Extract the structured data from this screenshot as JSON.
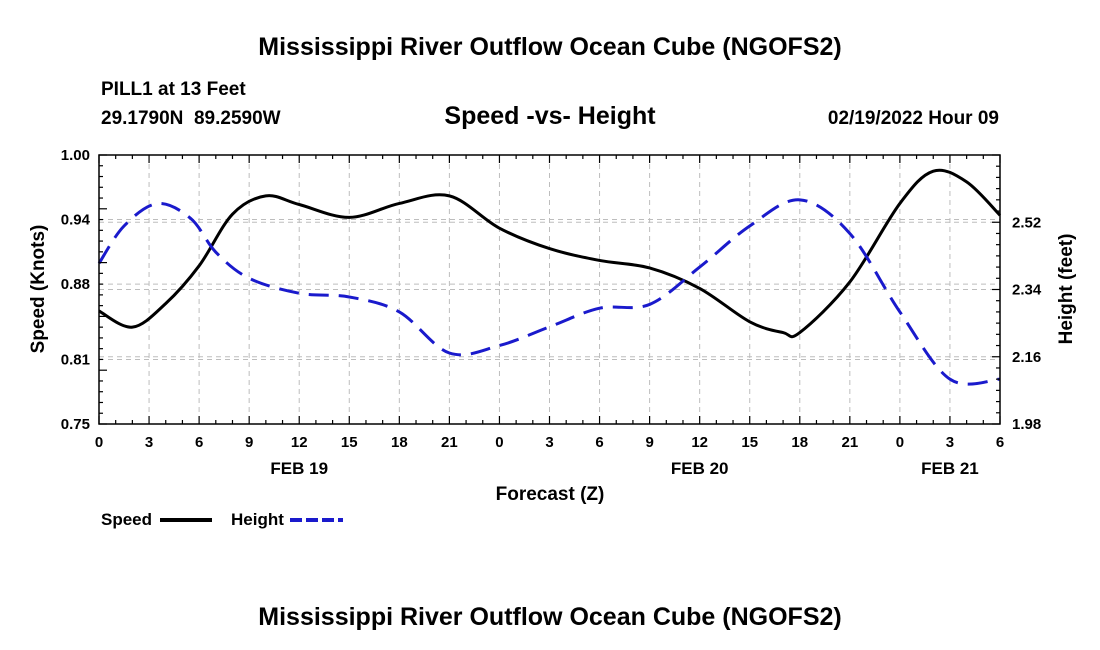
{
  "chart_data": {
    "type": "line",
    "title": "Mississippi River Outflow Ocean Cube (NGOFS2)",
    "footer_title": "Mississippi River Outflow Ocean Cube (NGOFS2)",
    "station": "PILL1 at 13 Feet",
    "coords": "29.1790N  89.2590W",
    "subtitle": "Speed -vs- Height",
    "datetime": "02/19/2022 Hour 09",
    "xlabel": "Forecast (Z)",
    "ylabel_left": "Speed (Knots)",
    "ylabel_right": "Height (feet)",
    "x_unit": "hours from FEB 19 00Z",
    "xlim": [
      0,
      54
    ],
    "x_ticks": [
      0,
      3,
      6,
      9,
      12,
      15,
      18,
      21,
      24,
      27,
      30,
      33,
      36,
      39,
      42,
      45,
      48,
      51,
      54
    ],
    "x_tick_labels": [
      "0",
      "3",
      "6",
      "9",
      "12",
      "15",
      "18",
      "21",
      "0",
      "3",
      "6",
      "9",
      "12",
      "15",
      "18",
      "21",
      "0",
      "3",
      "6"
    ],
    "date_labels": [
      {
        "text": "FEB 19",
        "x": 12
      },
      {
        "text": "FEB 20",
        "x": 36
      },
      {
        "text": "FEB 21",
        "x": 51
      }
    ],
    "ylim_left": [
      0.75,
      1.0
    ],
    "y_ticks_left": [
      0.75,
      0.81,
      0.88,
      0.94,
      1.0
    ],
    "y_tick_labels_left": [
      "0.75",
      "0.81",
      "0.88",
      "0.94",
      "1.00"
    ],
    "ylim_right": [
      1.98,
      2.7
    ],
    "y_ticks_right": [
      1.98,
      2.16,
      2.34,
      2.52
    ],
    "y_tick_labels_right": [
      "1.98",
      "2.16",
      "2.34",
      "2.52"
    ],
    "grid": true,
    "series": [
      {
        "name": "Speed",
        "axis": "left",
        "color": "#000000",
        "dash": "solid",
        "x": [
          0,
          2,
          4,
          6,
          8,
          10,
          12,
          15,
          18,
          21,
          24,
          27,
          30,
          33,
          36,
          39,
          41,
          42,
          45,
          48,
          50,
          52,
          54
        ],
        "values": [
          0.855,
          0.84,
          0.862,
          0.897,
          0.945,
          0.962,
          0.954,
          0.942,
          0.955,
          0.962,
          0.932,
          0.913,
          0.902,
          0.895,
          0.876,
          0.845,
          0.835,
          0.835,
          0.882,
          0.955,
          0.985,
          0.975,
          0.944
        ]
      },
      {
        "name": "Height",
        "axis": "right",
        "color": "#1a1acc",
        "dash": "dashed",
        "x": [
          0,
          1.5,
          3.5,
          5.5,
          7,
          9,
          12,
          15,
          18,
          21,
          24,
          27,
          30,
          33,
          36,
          39,
          42,
          45,
          48,
          51,
          54
        ],
        "values": [
          2.41,
          2.51,
          2.57,
          2.53,
          2.44,
          2.37,
          2.33,
          2.32,
          2.28,
          2.17,
          2.19,
          2.24,
          2.29,
          2.3,
          2.4,
          2.51,
          2.58,
          2.49,
          2.28,
          2.1,
          2.1
        ]
      }
    ],
    "legend": [
      {
        "label": "Speed",
        "color": "#000000",
        "dash": "solid"
      },
      {
        "label": "Height",
        "color": "#1a1acc",
        "dash": "dashed"
      }
    ]
  }
}
